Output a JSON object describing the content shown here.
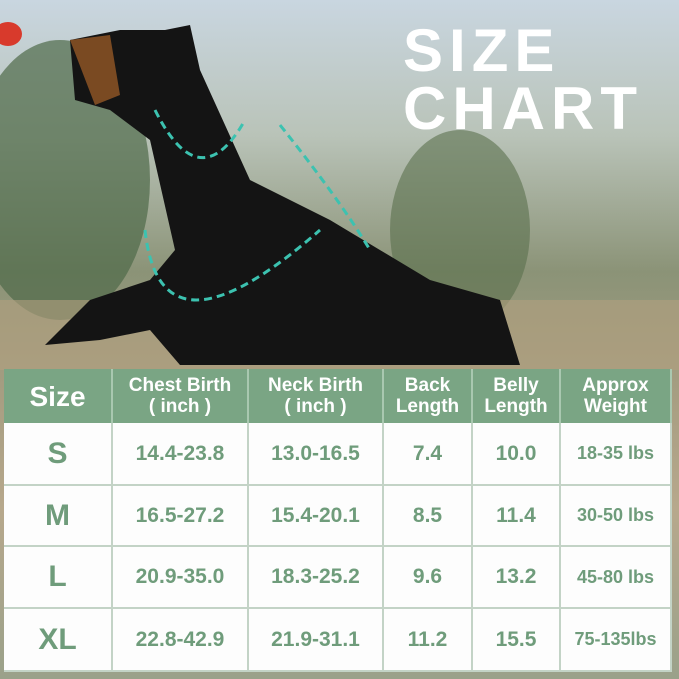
{
  "title": {
    "line1": "SIZE",
    "line2": "CHART"
  },
  "colors": {
    "header_green": "#7aa584",
    "text_green": "#6f9c7b",
    "measure_line": "#3cc2b0"
  },
  "table": {
    "headers": [
      "Size",
      "Chest Birth\n( inch )",
      "Neck Birth\n( inch )",
      "Back\nLength",
      "Belly\nLength",
      "Approx\nWeight"
    ],
    "rows": [
      [
        "S",
        "14.4-23.8",
        "13.0-16.5",
        "7.4",
        "10.0",
        "18-35 lbs"
      ],
      [
        "M",
        "16.5-27.2",
        "15.4-20.1",
        "8.5",
        "11.4",
        "30-50 lbs"
      ],
      [
        "L",
        "20.9-35.0",
        "18.3-25.2",
        "9.6",
        "13.2",
        "45-80 lbs"
      ],
      [
        "XL",
        "22.8-42.9",
        "21.9-31.1",
        "11.2",
        "15.5",
        "75-135lbs"
      ]
    ]
  }
}
